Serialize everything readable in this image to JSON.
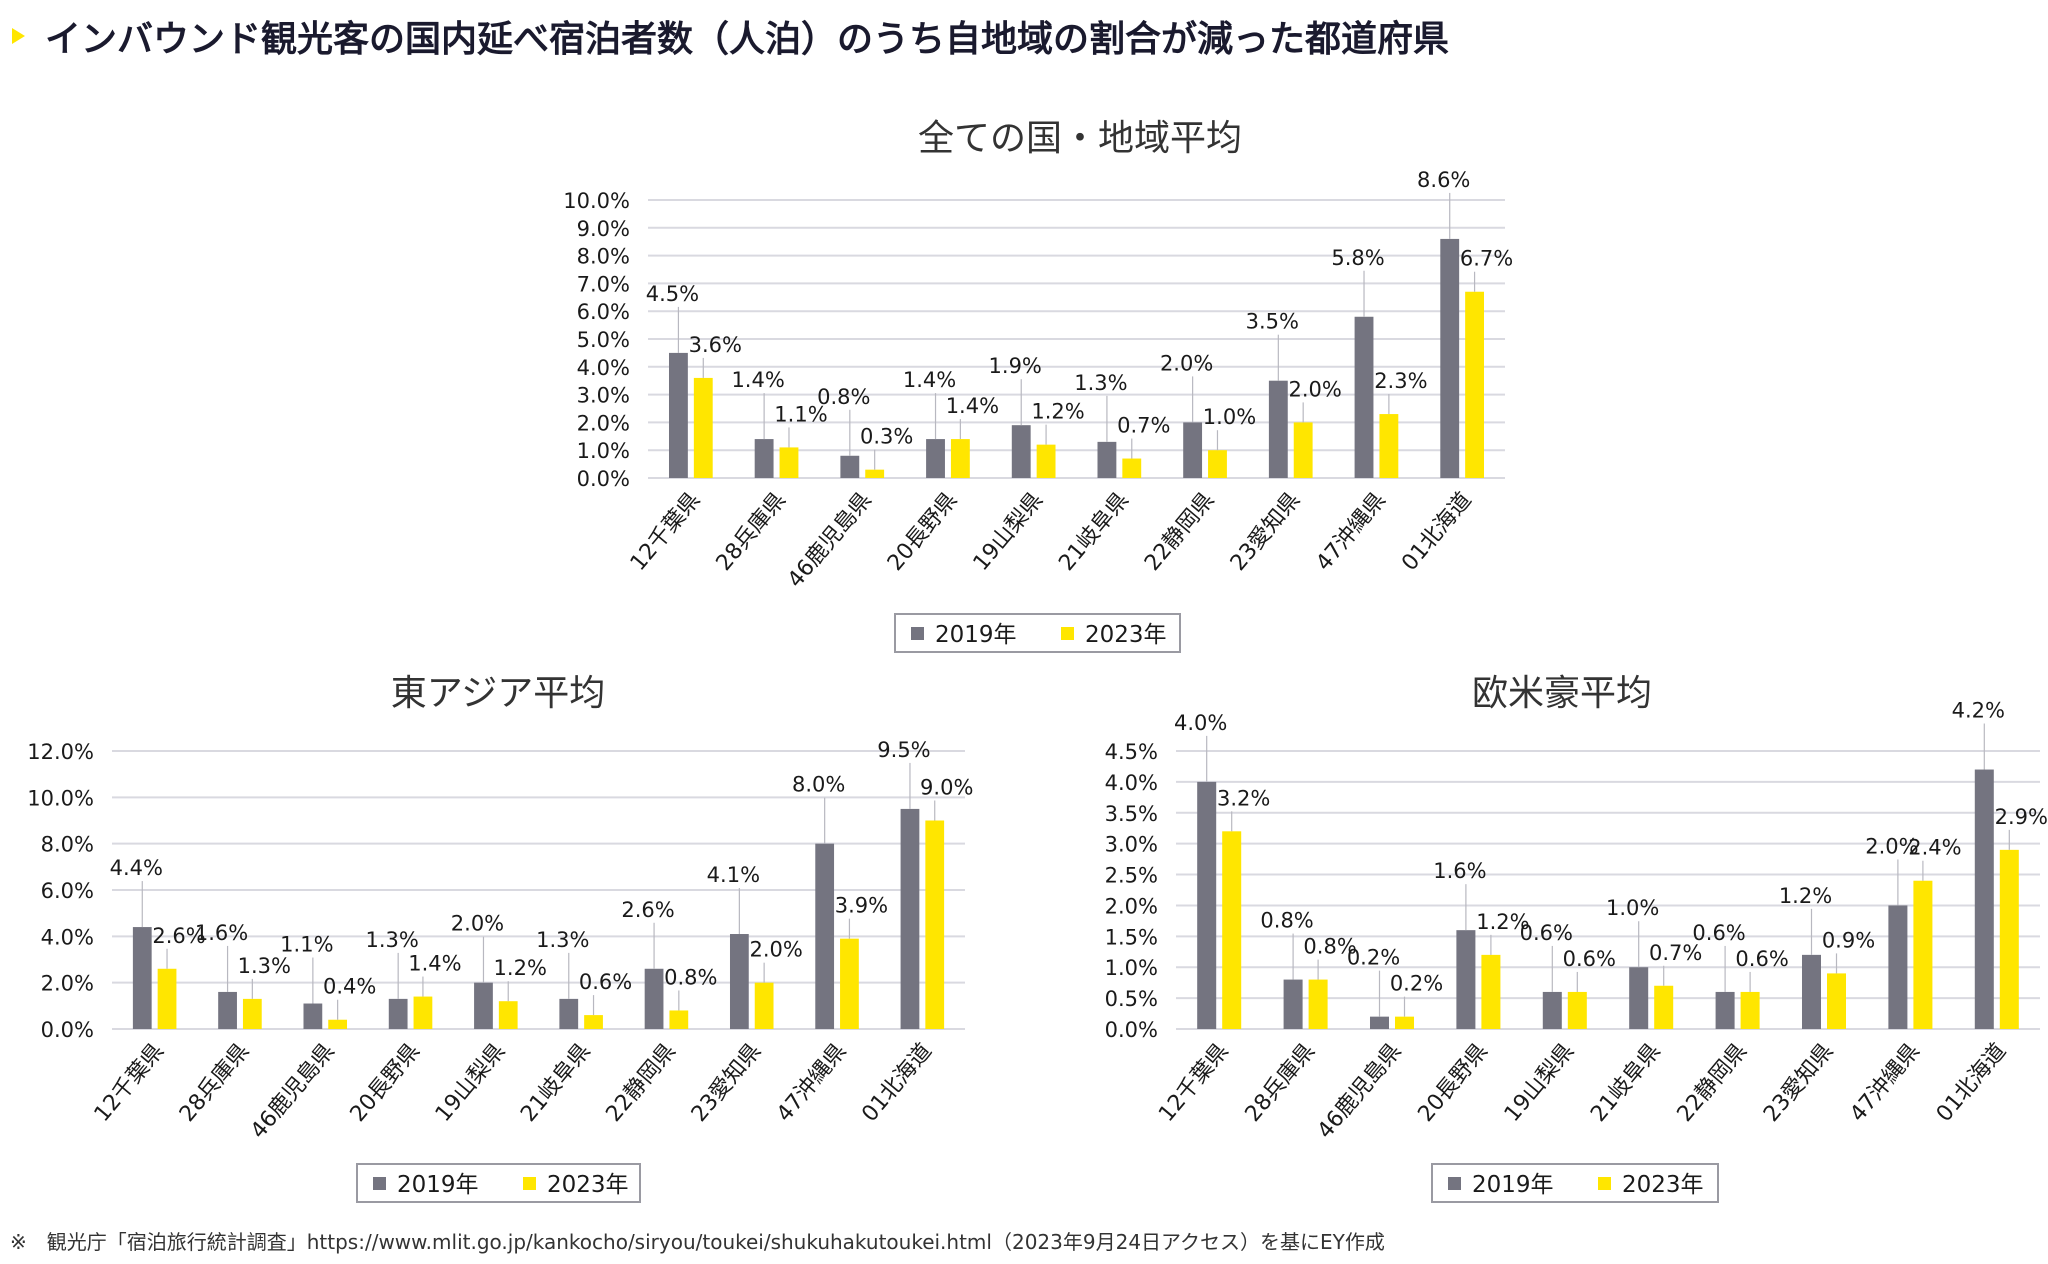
{
  "page": {
    "title": "インバウンド観光客の国内延べ宿泊者数（人泊）のうち自地域の割合が減った都道府県",
    "footnote": "※　観光庁「宿泊旅行統計調査」https://www.mlit.go.jp/kankocho/siryou/toukei/shukuhakutoukei.html（2023年9月24日アクセス）を基にEY作成",
    "accent_color": "#ffe600"
  },
  "chart_data": [
    {
      "id": "all",
      "type": "bar",
      "title": "全ての国・地域平均",
      "categories": [
        "12千葉県",
        "28兵庫県",
        "46鹿児島県",
        "20長野県",
        "19山梨県",
        "21岐阜県",
        "22静岡県",
        "23愛知県",
        "47沖縄県",
        "01北海道"
      ],
      "series": [
        {
          "name": "2019年",
          "color": "#747480",
          "values": [
            4.5,
            1.4,
            0.8,
            1.4,
            1.9,
            1.3,
            2.0,
            3.5,
            5.8,
            8.6
          ],
          "labels": [
            "4.5%",
            "1.4%",
            "0.8%",
            "1.4%",
            "1.9%",
            "1.3%",
            "2.0%",
            "3.5%",
            "5.8%",
            "8.6%"
          ]
        },
        {
          "name": "2023年",
          "color": "#ffe600",
          "values": [
            3.6,
            1.1,
            0.3,
            1.4,
            1.2,
            0.7,
            1.0,
            2.0,
            2.3,
            6.7
          ],
          "labels": [
            "3.6%",
            "1.1%",
            "0.3%",
            "1.4%",
            "1.2%",
            "0.7%",
            "1.0%",
            "2.0%",
            "2.3%",
            "6.7%"
          ]
        }
      ],
      "yticks": [
        "0.0%",
        "1.0%",
        "2.0%",
        "3.0%",
        "4.0%",
        "5.0%",
        "6.0%",
        "7.0%",
        "8.0%",
        "9.0%",
        "10.0%"
      ],
      "ylim": [
        0,
        10
      ],
      "ystep": 1,
      "xlabel": "",
      "ylabel": "",
      "grid": true,
      "legend": "bottom"
    },
    {
      "id": "east_asia",
      "type": "bar",
      "title": "東アジア平均",
      "categories": [
        "12千葉県",
        "28兵庫県",
        "46鹿児島県",
        "20長野県",
        "19山梨県",
        "21岐阜県",
        "22静岡県",
        "23愛知県",
        "47沖縄県",
        "01北海道"
      ],
      "series": [
        {
          "name": "2019年",
          "color": "#747480",
          "values": [
            4.4,
            1.6,
            1.1,
            1.3,
            2.0,
            1.3,
            2.6,
            4.1,
            8.0,
            9.5
          ],
          "labels": [
            "4.4%",
            "1.6%",
            "1.1%",
            "1.3%",
            "2.0%",
            "1.3%",
            "2.6%",
            "4.1%",
            "8.0%",
            "9.5%"
          ]
        },
        {
          "name": "2023年",
          "color": "#ffe600",
          "values": [
            2.6,
            1.3,
            0.4,
            1.4,
            1.2,
            0.6,
            0.8,
            2.0,
            3.9,
            9.0
          ],
          "labels": [
            "2.6%",
            "1.3%",
            "0.4%",
            "1.4%",
            "1.2%",
            "0.6%",
            "0.8%",
            "2.0%",
            "3.9%",
            "9.0%"
          ]
        }
      ],
      "yticks": [
        "0.0%",
        "2.0%",
        "4.0%",
        "6.0%",
        "8.0%",
        "10.0%",
        "12.0%"
      ],
      "ylim": [
        0,
        12
      ],
      "ystep": 2,
      "xlabel": "",
      "ylabel": "",
      "grid": true,
      "legend": "bottom"
    },
    {
      "id": "west",
      "type": "bar",
      "title": "欧米豪平均",
      "categories": [
        "12千葉県",
        "28兵庫県",
        "46鹿児島県",
        "20長野県",
        "19山梨県",
        "21岐阜県",
        "22静岡県",
        "23愛知県",
        "47沖縄県",
        "01北海道"
      ],
      "series": [
        {
          "name": "2019年",
          "color": "#747480",
          "values": [
            4.0,
            0.8,
            0.2,
            1.6,
            0.6,
            1.0,
            0.6,
            1.2,
            2.0,
            4.2
          ],
          "labels": [
            "4.0%",
            "0.8%",
            "0.2%",
            "1.6%",
            "0.6%",
            "1.0%",
            "0.6%",
            "1.2%",
            "2.0%",
            "4.2%"
          ]
        },
        {
          "name": "2023年",
          "color": "#ffe600",
          "values": [
            3.2,
            0.8,
            0.2,
            1.2,
            0.6,
            0.7,
            0.6,
            0.9,
            2.4,
            2.9
          ],
          "labels": [
            "3.2%",
            "0.8%",
            "0.2%",
            "1.2%",
            "0.6%",
            "0.7%",
            "0.6%",
            "0.9%",
            "2.4%",
            "2.9%"
          ]
        }
      ],
      "yticks": [
        "0.0%",
        "0.5%",
        "1.0%",
        "1.5%",
        "2.0%",
        "2.5%",
        "3.0%",
        "3.5%",
        "4.0%",
        "4.5%"
      ],
      "ylim": [
        0,
        4.5
      ],
      "ystep": 0.5,
      "xlabel": "",
      "ylabel": "",
      "grid": true,
      "legend": "bottom"
    }
  ]
}
